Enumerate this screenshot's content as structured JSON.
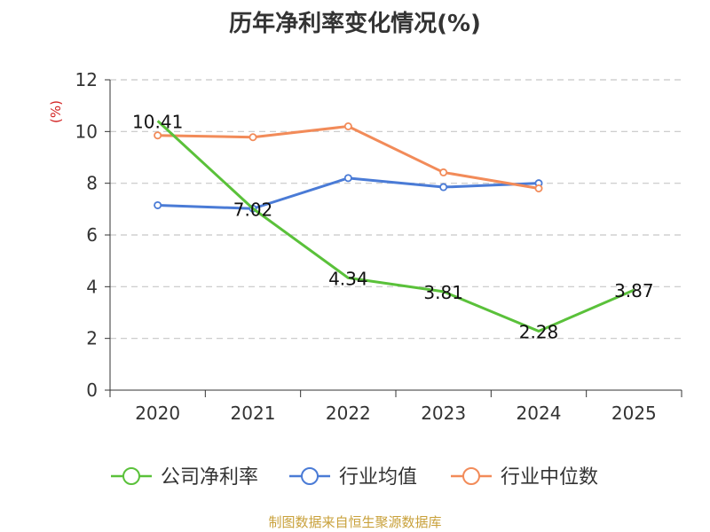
{
  "chart_data": {
    "type": "line",
    "title": "历年净利率变化情况(%)",
    "ylabel": "(%)",
    "xlabel": "",
    "ylim": [
      0,
      12
    ],
    "yticks": [
      "0",
      "2",
      "4",
      "6",
      "8",
      "10",
      "12"
    ],
    "categories": [
      "2020",
      "2021",
      "2022",
      "2023",
      "2024",
      "2025"
    ],
    "grid": true,
    "legend_position": "bottom",
    "series": [
      {
        "name": "公司净利率",
        "color": "#5ac13a",
        "values": [
          10.41,
          7.02,
          4.34,
          3.81,
          2.28,
          3.87
        ],
        "labels": [
          "10.41",
          "7.02",
          "4.34",
          "3.81",
          "2.28",
          "3.87"
        ],
        "show_points": false
      },
      {
        "name": "行业均值",
        "color": "#4a7bd6",
        "values": [
          7.15,
          7.02,
          8.2,
          7.85,
          8.0,
          null
        ],
        "show_points": true
      },
      {
        "name": "行业中位数",
        "color": "#f28b59",
        "values": [
          9.85,
          9.78,
          10.2,
          8.42,
          7.8,
          null
        ],
        "show_points": true
      }
    ]
  },
  "footer": {
    "source": "制图数据来自恒生聚源数据库"
  }
}
